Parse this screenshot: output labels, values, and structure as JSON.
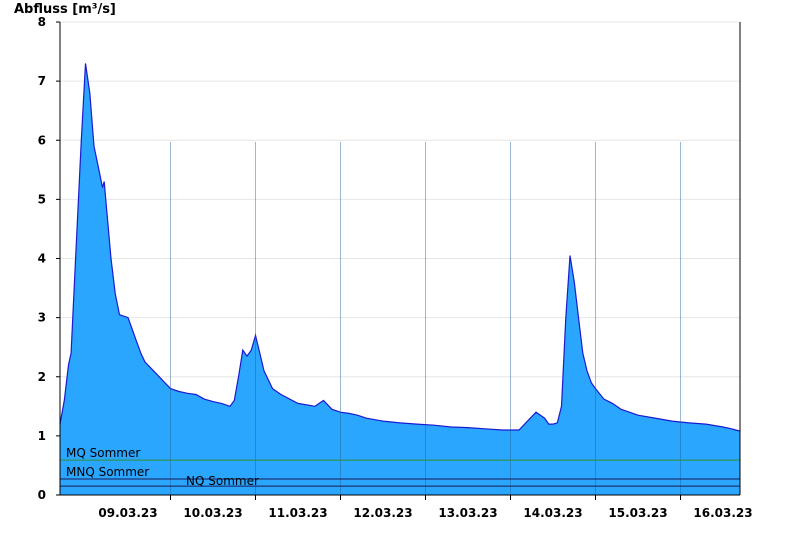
{
  "chart_data": {
    "type": "area",
    "ylabel": "Abfluss [m³/s]",
    "xlabel": "",
    "ylim": [
      0,
      8
    ],
    "y_ticks": [
      "0",
      "1",
      "2",
      "3",
      "4",
      "5",
      "6",
      "7",
      "8"
    ],
    "x_range_days": [
      8.2,
      16.2
    ],
    "x_ticks": [
      {
        "day": 9,
        "label": "09.03.23"
      },
      {
        "day": 10,
        "label": "10.03.23"
      },
      {
        "day": 11,
        "label": "11.03.23"
      },
      {
        "day": 12,
        "label": "12.03.23"
      },
      {
        "day": 13,
        "label": "13.03.23"
      },
      {
        "day": 14,
        "label": "14.03.23"
      },
      {
        "day": 15,
        "label": "15.03.23"
      },
      {
        "day": 16,
        "label": "16.03.23"
      }
    ],
    "grid": true,
    "area_color": "#2aa6ff",
    "line_color": "#1a1ad0",
    "series": [
      {
        "x": [
          8.2,
          8.25,
          8.3,
          8.33,
          8.36,
          8.45,
          8.5,
          8.55,
          8.6,
          8.65,
          8.7,
          8.72,
          8.75,
          8.8,
          8.85,
          8.9,
          9.0,
          9.05,
          9.1,
          9.15,
          9.2,
          9.3,
          9.4,
          9.5,
          9.6,
          9.7,
          9.8,
          9.9,
          10.0,
          10.1,
          10.2,
          10.25,
          10.3,
          10.35,
          10.4,
          10.45,
          10.5,
          10.55,
          10.6,
          10.65,
          10.7,
          10.8,
          11.0,
          11.2,
          11.3,
          11.4,
          11.5,
          11.6,
          11.7,
          11.8,
          12.0,
          12.2,
          12.4,
          12.6,
          12.8,
          13.0,
          13.2,
          13.4,
          13.6,
          13.8,
          13.9,
          13.95,
          14.0,
          14.05,
          14.1,
          14.15,
          14.2,
          14.25,
          14.3,
          14.35,
          14.4,
          14.45,
          14.5,
          14.6,
          14.7,
          14.8,
          14.9,
          15.0,
          15.2,
          15.4,
          15.6,
          15.8,
          16.0,
          16.1,
          16.15,
          16.2
        ],
        "y": [
          1.2,
          1.6,
          2.2,
          2.4,
          3.3,
          6.0,
          7.3,
          6.8,
          5.9,
          5.55,
          5.2,
          5.3,
          4.8,
          4.0,
          3.4,
          3.05,
          3.0,
          2.8,
          2.6,
          2.4,
          2.25,
          2.1,
          1.95,
          1.8,
          1.75,
          1.72,
          1.7,
          1.62,
          1.58,
          1.55,
          1.5,
          1.6,
          2.0,
          2.45,
          2.35,
          2.45,
          2.7,
          2.4,
          2.1,
          1.95,
          1.8,
          1.7,
          1.55,
          1.5,
          1.6,
          1.45,
          1.4,
          1.38,
          1.35,
          1.3,
          1.25,
          1.22,
          1.2,
          1.18,
          1.15,
          1.14,
          1.12,
          1.1,
          1.1,
          1.4,
          1.3,
          1.2,
          1.2,
          1.22,
          1.5,
          3.0,
          4.05,
          3.6,
          3.0,
          2.4,
          2.1,
          1.9,
          1.8,
          1.62,
          1.55,
          1.45,
          1.4,
          1.35,
          1.3,
          1.25,
          1.22,
          1.2,
          1.15,
          1.12,
          1.1,
          1.08
        ]
      }
    ],
    "reference_lines": [
      {
        "label": "MQ Sommer",
        "value": 0.59,
        "color": "#2f8f2f"
      },
      {
        "label": "MNQ Sommer",
        "value": 0.27,
        "color": "#1a1a55"
      },
      {
        "label": "NQ Sommer",
        "value": 0.15,
        "color": "#1a1a55"
      }
    ]
  }
}
